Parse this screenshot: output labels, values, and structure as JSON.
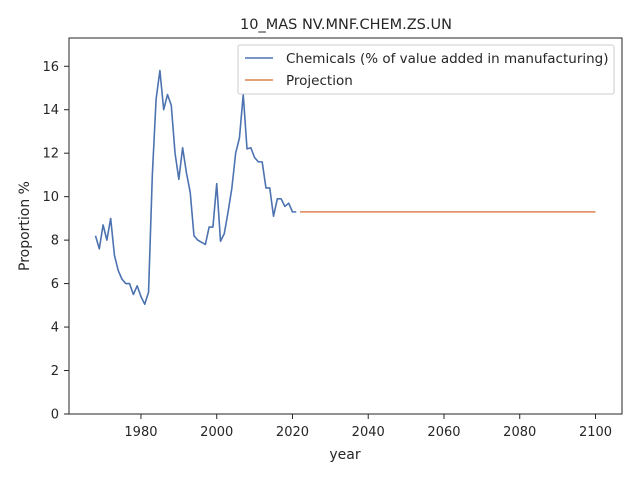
{
  "chart_data": {
    "type": "line",
    "title": "10_MAS NV.MNF.CHEM.ZS.UN",
    "xlabel": "year",
    "ylabel": "Proportion %",
    "xlim": [
      1961,
      2107
    ],
    "ylim": [
      0,
      17.3
    ],
    "xticks": [
      1980,
      2000,
      2020,
      2040,
      2060,
      2080,
      2100
    ],
    "yticks": [
      0,
      2,
      4,
      6,
      8,
      10,
      12,
      14,
      16
    ],
    "grid": false,
    "legend_position": "top-right",
    "series": [
      {
        "name": "Chemicals (% of value added in manufacturing)",
        "color": "#4c72b0",
        "points": [
          [
            1968,
            8.2
          ],
          [
            1969,
            7.6
          ],
          [
            1970,
            8.7
          ],
          [
            1971,
            8.0
          ],
          [
            1972,
            9.0
          ],
          [
            1973,
            7.3
          ],
          [
            1974,
            6.6
          ],
          [
            1975,
            6.2
          ],
          [
            1976,
            6.0
          ],
          [
            1977,
            6.0
          ],
          [
            1978,
            5.5
          ],
          [
            1979,
            5.9
          ],
          [
            1980,
            5.4
          ],
          [
            1981,
            5.05
          ],
          [
            1982,
            5.6
          ],
          [
            1983,
            11.0
          ],
          [
            1984,
            14.5
          ],
          [
            1985,
            15.8
          ],
          [
            1986,
            14.0
          ],
          [
            1987,
            14.7
          ],
          [
            1988,
            14.2
          ],
          [
            1989,
            12.0
          ],
          [
            1990,
            10.8
          ],
          [
            1991,
            12.25
          ],
          [
            1992,
            11.1
          ],
          [
            1993,
            10.2
          ],
          [
            1994,
            8.2
          ],
          [
            1995,
            8.0
          ],
          [
            1996,
            7.9
          ],
          [
            1997,
            7.8
          ],
          [
            1998,
            8.6
          ],
          [
            1999,
            8.6
          ],
          [
            2000,
            10.6
          ],
          [
            2001,
            7.95
          ],
          [
            2002,
            8.3
          ],
          [
            2003,
            9.3
          ],
          [
            2004,
            10.4
          ],
          [
            2005,
            12.0
          ],
          [
            2006,
            12.7
          ],
          [
            2007,
            14.7
          ],
          [
            2008,
            12.2
          ],
          [
            2009,
            12.25
          ],
          [
            2010,
            11.8
          ],
          [
            2011,
            11.6
          ],
          [
            2012,
            11.6
          ],
          [
            2013,
            10.4
          ],
          [
            2014,
            10.4
          ],
          [
            2015,
            9.1
          ],
          [
            2016,
            9.9
          ],
          [
            2017,
            9.9
          ],
          [
            2018,
            9.55
          ],
          [
            2019,
            9.7
          ],
          [
            2020,
            9.3
          ],
          [
            2021,
            9.3
          ]
        ]
      },
      {
        "name": "Projection",
        "color": "#dd8452",
        "points": [
          [
            2022,
            9.3
          ],
          [
            2100,
            9.3
          ]
        ]
      }
    ]
  }
}
